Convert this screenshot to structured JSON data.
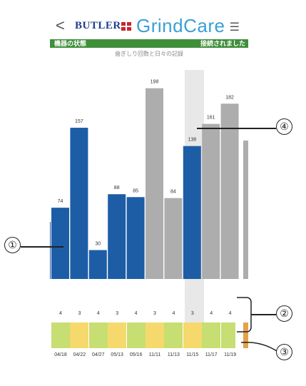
{
  "header": {
    "back": "<",
    "brand": "BUTLER",
    "app": "GrindCare",
    "app_mark": "·",
    "menu": "☰"
  },
  "status": {
    "label": "機器の状態",
    "value": "接続されました"
  },
  "chart_data": {
    "type": "bar",
    "title": "歯ぎしり回数と日々の記録",
    "values": [
      74,
      157,
      30,
      88,
      85,
      198,
      84,
      138,
      161,
      182
    ],
    "colors": [
      "blue",
      "blue",
      "blue",
      "blue",
      "blue",
      "gray",
      "gray",
      "blue",
      "gray",
      "gray"
    ],
    "selected": 7
  },
  "scores": [
    "4",
    "3",
    "4",
    "3",
    "4",
    "3",
    "4",
    "3",
    "4",
    "4"
  ],
  "score_colors": [
    "#c6de72",
    "#f6d96c",
    "#c6de72",
    "#f6d96c",
    "#c6de72",
    "#f6d96c",
    "#c6de72",
    "#f6d96c",
    "#c6de72",
    "#c6de72"
  ],
  "dates": [
    "04/18",
    "04/22",
    "04/27",
    "05/13",
    "05/16",
    "11/11",
    "11/13",
    "11/15",
    "11/17",
    "11/19"
  ],
  "callouts": [
    "①",
    "②",
    "③",
    "④"
  ]
}
